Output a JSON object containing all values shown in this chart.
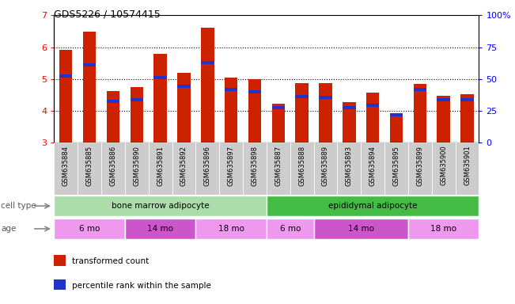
{
  "title": "GDS5226 / 10574415",
  "samples": [
    "GSM635884",
    "GSM635885",
    "GSM635886",
    "GSM635890",
    "GSM635891",
    "GSM635892",
    "GSM635896",
    "GSM635897",
    "GSM635898",
    "GSM635887",
    "GSM635888",
    "GSM635889",
    "GSM635893",
    "GSM635894",
    "GSM635895",
    "GSM635899",
    "GSM635900",
    "GSM635901"
  ],
  "red_values": [
    5.92,
    6.48,
    4.62,
    4.75,
    5.8,
    5.2,
    6.62,
    5.05,
    5.0,
    4.22,
    4.88,
    4.88,
    4.27,
    4.58,
    3.82,
    4.85,
    4.48,
    4.52
  ],
  "blue_values": [
    5.1,
    5.45,
    4.3,
    4.35,
    5.05,
    4.78,
    5.52,
    4.68,
    4.6,
    4.1,
    4.45,
    4.42,
    4.1,
    4.18,
    3.88,
    4.68,
    4.35,
    4.35
  ],
  "y_min": 3,
  "y_max": 7,
  "bar_color": "#cc2200",
  "blue_color": "#2233cc",
  "cell_type_groups": [
    {
      "label": "bone marrow adipocyte",
      "start": 0,
      "end": 9,
      "color": "#aaddaa"
    },
    {
      "label": "epididymal adipocyte",
      "start": 9,
      "end": 18,
      "color": "#44bb44"
    }
  ],
  "age_groups": [
    {
      "label": "6 mo",
      "start": 0,
      "end": 3,
      "color": "#ee99ee"
    },
    {
      "label": "14 mo",
      "start": 3,
      "end": 6,
      "color": "#cc55cc"
    },
    {
      "label": "18 mo",
      "start": 6,
      "end": 9,
      "color": "#ee99ee"
    },
    {
      "label": "6 mo",
      "start": 9,
      "end": 11,
      "color": "#ee99ee"
    },
    {
      "label": "14 mo",
      "start": 11,
      "end": 15,
      "color": "#cc55cc"
    },
    {
      "label": "18 mo",
      "start": 15,
      "end": 18,
      "color": "#ee99ee"
    }
  ],
  "legend_items": [
    {
      "label": "transformed count",
      "color": "#cc2200"
    },
    {
      "label": "percentile rank within the sample",
      "color": "#2233cc"
    }
  ],
  "cell_type_label": "cell type",
  "age_label": "age",
  "bar_width": 0.55,
  "tick_bg_color": "#cccccc",
  "gap_color": "#ffffff"
}
